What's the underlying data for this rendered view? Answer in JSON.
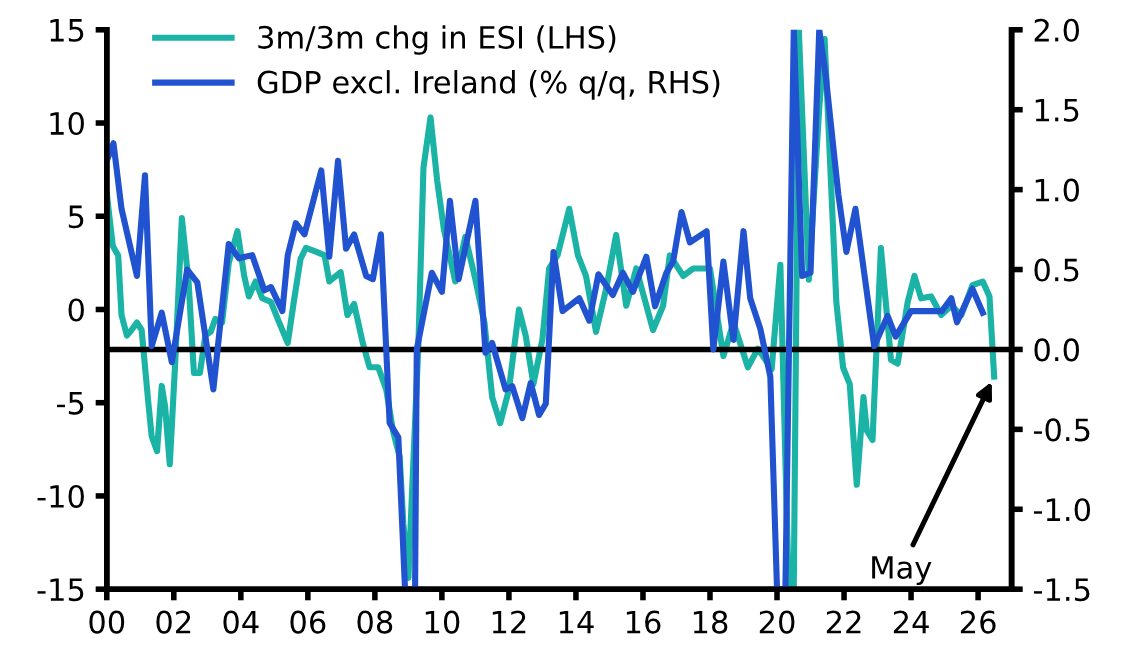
{
  "chart_data": {
    "type": "line",
    "xlim": [
      0,
      27
    ],
    "xticks": [
      {
        "value": 0,
        "label": "00"
      },
      {
        "value": 2,
        "label": "02"
      },
      {
        "value": 4,
        "label": "04"
      },
      {
        "value": 6,
        "label": "06"
      },
      {
        "value": 8,
        "label": "08"
      },
      {
        "value": 10,
        "label": "10"
      },
      {
        "value": 12,
        "label": "12"
      },
      {
        "value": 14,
        "label": "14"
      },
      {
        "value": 16,
        "label": "16"
      },
      {
        "value": 18,
        "label": "18"
      },
      {
        "value": 20,
        "label": "20"
      },
      {
        "value": 22,
        "label": "22"
      },
      {
        "value": 24,
        "label": "24"
      },
      {
        "value": 26,
        "label": "26"
      }
    ],
    "ylim": [
      -15,
      15
    ],
    "yticks": [
      -15,
      -10,
      -5,
      0,
      5,
      10,
      15
    ],
    "y2lim": [
      -1.5,
      2.0
    ],
    "y2ticks": [
      {
        "value": -1.5,
        "label": "-1.5"
      },
      {
        "value": -1.0,
        "label": "-1.0"
      },
      {
        "value": -0.5,
        "label": "-0.5"
      },
      {
        "value": 0,
        "label": "0.0"
      },
      {
        "value": 0.5,
        "label": "0.5"
      },
      {
        "value": 1.0,
        "label": "1.0"
      },
      {
        "value": 1.5,
        "label": "1.5"
      },
      {
        "value": 2.0,
        "label": "2.0"
      }
    ],
    "legend": "top left",
    "grid": false,
    "marker": "none",
    "line_style": "solid",
    "ref_lines": [
      {
        "axis": "y2",
        "value": 0,
        "color": "#000000",
        "line_style": "solid"
      }
    ],
    "annotations": [
      {
        "text": "May",
        "x": 26.48,
        "y": -3.6
      }
    ],
    "series": [
      {
        "name": "3m/3m chg in ESI (LHS)",
        "color": "#1ab3a6",
        "axis": "y",
        "x": [
          0,
          0.18,
          0.34,
          0.44,
          0.6,
          0.74,
          0.9,
          1.04,
          1.24,
          1.34,
          1.5,
          1.64,
          1.74,
          1.88,
          2.04,
          2.24,
          2.44,
          2.6,
          2.78,
          2.94,
          3.1,
          3.24,
          3.44,
          3.64,
          3.9,
          4.1,
          4.24,
          4.44,
          4.64,
          4.9,
          5.1,
          5.4,
          5.58,
          5.78,
          5.94,
          6.24,
          6.5,
          6.64,
          6.84,
          6.98,
          7.18,
          7.38,
          7.64,
          7.84,
          8.1,
          8.34,
          8.54,
          8.74,
          8.85,
          9.0,
          9.3,
          9.45,
          9.66,
          9.86,
          10.06,
          10.4,
          10.7,
          11.0,
          11.27,
          11.5,
          11.74,
          12.0,
          12.3,
          12.5,
          12.73,
          13.0,
          13.2,
          13.45,
          13.8,
          14.06,
          14.3,
          14.6,
          14.9,
          15.2,
          15.5,
          15.8,
          16.3,
          16.6,
          16.8,
          17.2,
          17.5,
          18.0,
          18.4,
          18.7,
          19.13,
          19.43,
          19.84,
          20.1,
          20.35,
          20.5,
          20.65,
          20.95,
          21.26,
          21.42,
          21.77,
          21.97,
          22.17,
          22.38,
          22.58,
          22.68,
          22.85,
          23.1,
          23.4,
          23.6,
          23.9,
          24.1,
          24.3,
          24.6,
          24.9,
          25.2,
          25.5,
          25.83,
          26.14,
          26.34,
          26.48
        ],
        "values": [
          6.2,
          3.4,
          2.9,
          -0.3,
          -1.4,
          -1.1,
          -0.7,
          -1.1,
          -5.0,
          -6.8,
          -7.6,
          -4.1,
          -5.2,
          -8.3,
          -2.9,
          4.9,
          1.5,
          -3.4,
          -3.4,
          -1.4,
          -1.2,
          -0.5,
          -0.7,
          2.5,
          4.2,
          1.8,
          0.7,
          1.5,
          0.6,
          0.4,
          -0.5,
          -1.8,
          0.4,
          2.7,
          3.3,
          3.1,
          2.9,
          1.5,
          1.8,
          2.0,
          -0.3,
          0.3,
          -1.8,
          -3.1,
          -3.1,
          -4.3,
          -6.5,
          -7.9,
          -11.5,
          -14.4,
          -1.8,
          7.6,
          10.3,
          6.9,
          4.3,
          1.5,
          3.9,
          1.6,
          -0.7,
          -4.7,
          -6.1,
          -4.3,
          0.0,
          -1.4,
          -4.0,
          -1.6,
          2.2,
          2.9,
          5.4,
          2.9,
          1.8,
          -1.2,
          1.1,
          4.0,
          0.2,
          2.2,
          -1.1,
          0.2,
          2.9,
          1.8,
          2.2,
          2.2,
          -2.5,
          -0.7,
          -3.1,
          -2.1,
          -3.2,
          2.4,
          -15,
          -15,
          15,
          1.6,
          10.8,
          14.5,
          0.4,
          -3.1,
          -4.0,
          -9.4,
          -4.7,
          -6.5,
          -7.0,
          3.3,
          -2.7,
          -2.9,
          0.4,
          1.8,
          0.6,
          0.7,
          -0.3,
          0.2,
          -0.3,
          1.3,
          1.5,
          0.7,
          -3.6
        ]
      },
      {
        "name": "GDP excl. Ireland (% q/q, RHS)",
        "color": "#2152d0",
        "axis": "y2",
        "x": [
          0,
          0.2,
          0.44,
          0.9,
          1.14,
          1.34,
          1.64,
          1.94,
          2.4,
          2.7,
          3.18,
          3.64,
          3.94,
          4.34,
          4.7,
          4.9,
          5.24,
          5.4,
          5.64,
          5.9,
          6.4,
          6.64,
          6.9,
          7.14,
          7.38,
          7.74,
          7.94,
          8.18,
          8.44,
          8.7,
          8.9,
          9.2,
          9.25,
          9.7,
          10.0,
          10.24,
          10.5,
          11.0,
          11.3,
          11.5,
          11.9,
          12.1,
          12.4,
          12.65,
          12.9,
          13.1,
          13.33,
          13.6,
          14.1,
          14.4,
          14.67,
          15.1,
          15.4,
          15.7,
          16.1,
          16.36,
          16.7,
          16.9,
          17.15,
          17.4,
          17.9,
          18.1,
          18.4,
          18.7,
          19.0,
          19.2,
          19.5,
          19.8,
          20.0,
          20.25,
          20.5,
          20.75,
          21.0,
          21.26,
          21.46,
          21.83,
          22.07,
          22.34,
          22.9,
          23.3,
          23.54,
          24.0,
          24.92,
          25.2,
          25.37,
          25.83,
          26.14
        ],
        "values": [
          1.18,
          1.29,
          0.88,
          0.46,
          1.09,
          0.02,
          0.23,
          -0.08,
          0.5,
          0.42,
          -0.25,
          0.66,
          0.57,
          0.59,
          0.37,
          0.39,
          0.24,
          0.59,
          0.79,
          0.72,
          1.12,
          0.58,
          1.18,
          0.63,
          0.72,
          0.46,
          0.44,
          0.72,
          -0.46,
          -0.55,
          -1.5,
          -1.5,
          0.0,
          0.48,
          0.36,
          0.93,
          0.44,
          0.93,
          -0.02,
          0.04,
          -0.25,
          -0.23,
          -0.43,
          -0.21,
          -0.41,
          -0.34,
          0.61,
          0.24,
          0.32,
          0.18,
          0.47,
          0.34,
          0.48,
          0.36,
          0.58,
          0.27,
          0.48,
          0.55,
          0.86,
          0.67,
          0.74,
          0.0,
          0.55,
          0.06,
          0.74,
          0.32,
          0.13,
          -0.17,
          -1.5,
          -1.5,
          2.0,
          0.46,
          0.48,
          2.0,
          1.7,
          0.97,
          0.61,
          0.88,
          0.02,
          0.21,
          0.08,
          0.24,
          0.24,
          0.32,
          0.17,
          0.38,
          0.23
        ]
      }
    ]
  }
}
